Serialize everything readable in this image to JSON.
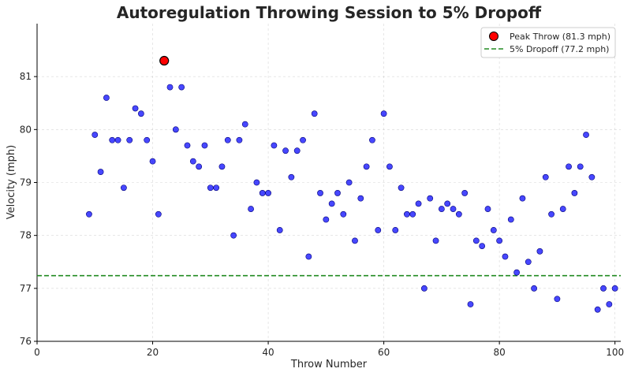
{
  "chart_data": {
    "type": "scatter",
    "title": "Autoregulation Throwing Session to 5% Dropoff",
    "xlabel": "Throw Number",
    "ylabel": "Velocity (mph)",
    "xlim": [
      0,
      101
    ],
    "ylim": [
      76,
      82
    ],
    "x_ticks": [
      0,
      20,
      40,
      60,
      80,
      100
    ],
    "y_ticks": [
      76,
      77,
      78,
      79,
      80,
      81
    ],
    "grid": true,
    "legend_position": "top-right",
    "series": [
      {
        "kind": "points",
        "color": "#0000ff",
        "points": [
          [
            9,
            78.4
          ],
          [
            10,
            79.9
          ],
          [
            11,
            79.2
          ],
          [
            12,
            80.6
          ],
          [
            13,
            79.8
          ],
          [
            14,
            79.8
          ],
          [
            15,
            78.9
          ],
          [
            16,
            79.8
          ],
          [
            17,
            80.4
          ],
          [
            18,
            80.3
          ],
          [
            19,
            79.8
          ],
          [
            20,
            79.4
          ],
          [
            21,
            78.4
          ],
          [
            23,
            80.8
          ],
          [
            24,
            80.0
          ],
          [
            25,
            80.8
          ],
          [
            26,
            79.7
          ],
          [
            27,
            79.4
          ],
          [
            28,
            79.3
          ],
          [
            29,
            79.7
          ],
          [
            30,
            78.9
          ],
          [
            31,
            78.9
          ],
          [
            32,
            79.3
          ],
          [
            33,
            79.8
          ],
          [
            34,
            78.0
          ],
          [
            35,
            79.8
          ],
          [
            36,
            80.1
          ],
          [
            37,
            78.5
          ],
          [
            38,
            79.0
          ],
          [
            39,
            78.8
          ],
          [
            40,
            78.8
          ],
          [
            41,
            79.7
          ],
          [
            42,
            78.1
          ],
          [
            43,
            79.6
          ],
          [
            44,
            79.1
          ],
          [
            45,
            79.6
          ],
          [
            46,
            79.8
          ],
          [
            47,
            77.6
          ],
          [
            48,
            80.3
          ],
          [
            49,
            78.8
          ],
          [
            50,
            78.3
          ],
          [
            51,
            78.6
          ],
          [
            52,
            78.8
          ],
          [
            53,
            78.4
          ],
          [
            54,
            79.0
          ],
          [
            55,
            77.9
          ],
          [
            56,
            78.7
          ],
          [
            57,
            79.3
          ],
          [
            58,
            79.8
          ],
          [
            59,
            78.1
          ],
          [
            60,
            80.3
          ],
          [
            61,
            79.3
          ],
          [
            62,
            78.1
          ],
          [
            63,
            78.9
          ],
          [
            64,
            78.4
          ],
          [
            65,
            78.4
          ],
          [
            66,
            78.6
          ],
          [
            67,
            77.0
          ],
          [
            68,
            78.7
          ],
          [
            69,
            77.9
          ],
          [
            70,
            78.5
          ],
          [
            71,
            78.6
          ],
          [
            72,
            78.5
          ],
          [
            73,
            78.4
          ],
          [
            74,
            78.8
          ],
          [
            75,
            76.7
          ],
          [
            76,
            77.9
          ],
          [
            77,
            77.8
          ],
          [
            78,
            78.5
          ],
          [
            79,
            78.1
          ],
          [
            80,
            77.9
          ],
          [
            81,
            77.6
          ],
          [
            82,
            78.3
          ],
          [
            83,
            77.3
          ],
          [
            84,
            78.7
          ],
          [
            85,
            77.5
          ],
          [
            86,
            77.0
          ],
          [
            87,
            77.7
          ],
          [
            88,
            79.1
          ],
          [
            89,
            78.4
          ],
          [
            90,
            76.8
          ],
          [
            91,
            78.5
          ],
          [
            92,
            79.3
          ],
          [
            93,
            78.8
          ],
          [
            94,
            79.3
          ],
          [
            95,
            79.9
          ],
          [
            96,
            79.1
          ],
          [
            97,
            76.6
          ],
          [
            98,
            77.0
          ],
          [
            99,
            76.7
          ],
          [
            100,
            77.0
          ]
        ]
      },
      {
        "kind": "peak",
        "name": "Peak Throw (81.3 mph)",
        "color": "#ff0000",
        "points": [
          [
            22,
            81.3
          ]
        ]
      },
      {
        "kind": "hline",
        "name": "5% Dropoff (77.2 mph)",
        "color": "#228b22",
        "y": 77.24
      }
    ]
  }
}
